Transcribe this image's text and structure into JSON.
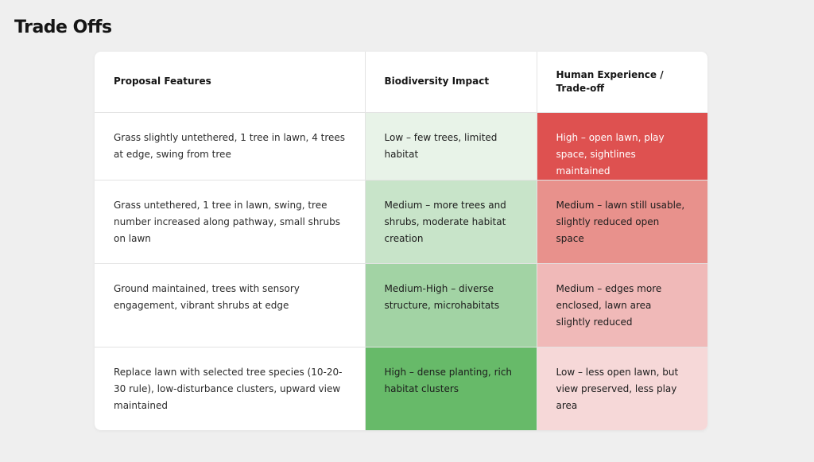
{
  "page": {
    "title": "Trade Offs"
  },
  "table": {
    "headers": [
      "Proposal Features",
      "Biodiversity Impact",
      "Human Experience / Trade-off"
    ],
    "rows": [
      {
        "feature": "Grass slightly untethered, 1 tree in lawn, 4 trees at edge, swing from tree",
        "biodiversity": "Low – few trees, limited habitat",
        "human": "High – open lawn, play space, sightlines maintained",
        "biodiversity_color": "#e8f3e8",
        "human_color": "#de5150",
        "human_text_color": "#ffffff"
      },
      {
        "feature": "Grass untethered, 1 tree in lawn, swing, tree number increased along pathway, small shrubs on lawn",
        "biodiversity": "Medium – more trees and shrubs, moderate habitat creation",
        "human": "Medium – lawn still usable, slightly reduced open space",
        "biodiversity_color": "#c8e4c9",
        "human_color": "#e8918c",
        "human_text_color": "#1c1c1c"
      },
      {
        "feature": "Ground maintained, trees with sensory engagement, vibrant shrubs at edge",
        "biodiversity": "Medium-High – diverse structure, microhabitats",
        "human": "Medium – edges more enclosed, lawn area slightly reduced",
        "biodiversity_color": "#a2d3a4",
        "human_color": "#f0b9b8",
        "human_text_color": "#1c1c1c"
      },
      {
        "feature": "Replace lawn with selected tree species (10-20-30 rule), low-disturbance clusters, upward view maintained",
        "biodiversity": "High – dense planting, rich habitat clusters",
        "human": "Low – less open lawn, but view preserved, less play area",
        "biodiversity_color": "#67ba69",
        "human_color": "#f6d8d8",
        "human_text_color": "#1c1c1c"
      }
    ]
  }
}
